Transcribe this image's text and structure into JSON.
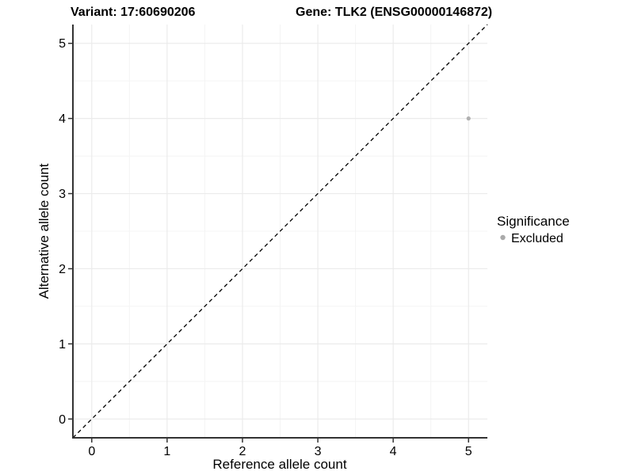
{
  "figure": {
    "background": "#ffffff"
  },
  "chart_data": {
    "type": "scatter",
    "titles": {
      "left": "Variant: 17:60690206",
      "right": "Gene: TLK2 (ENSG00000146872)"
    },
    "xlabel": "Reference allele count",
    "ylabel": "Alternative allele count",
    "xlim": [
      -0.25,
      5.25
    ],
    "ylim": [
      -0.25,
      5.25
    ],
    "xticks": [
      0,
      1,
      2,
      3,
      4,
      5
    ],
    "yticks": [
      0,
      1,
      2,
      3,
      4,
      5
    ],
    "xminor": [
      0.5,
      1.5,
      2.5,
      3.5,
      4.5
    ],
    "yminor": [
      0.5,
      1.5,
      2.5,
      3.5,
      4.5
    ],
    "grid": "major+minor",
    "series": [
      {
        "name": "Excluded",
        "color": "#b0b0b0",
        "radius": 2.6,
        "points": [
          {
            "x": 5,
            "y": 4
          }
        ]
      }
    ],
    "reference_line": {
      "type": "identity",
      "slope": 1,
      "intercept": 0,
      "style": "dashed",
      "color": "#000000"
    },
    "legend": {
      "title": "Significance",
      "position": "right",
      "items": [
        {
          "label": "Excluded",
          "marker_color": "#aaaaaa"
        }
      ]
    },
    "colors": {
      "grid_major": "#ebebeb",
      "grid_minor": "#f4f4f4",
      "axis_line": "#333333",
      "tick_mark": "#333333",
      "text": "#000000"
    }
  }
}
